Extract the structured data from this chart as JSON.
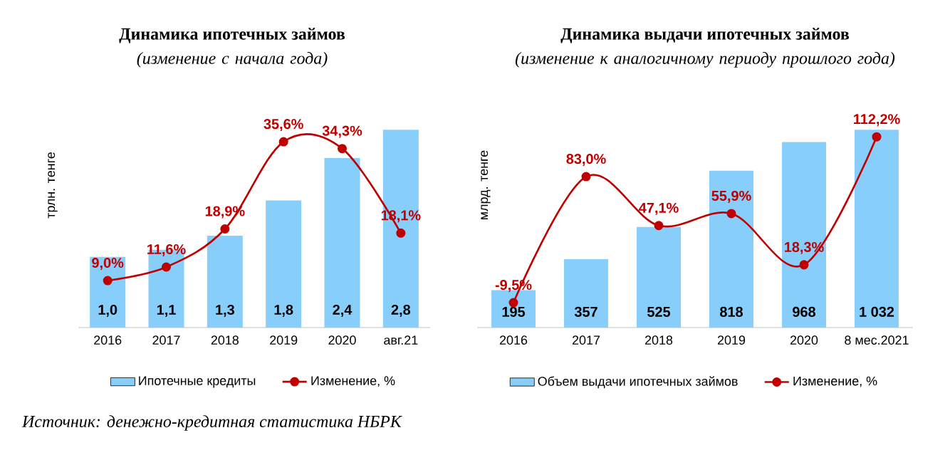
{
  "chart_data": [
    {
      "type": "bar",
      "title": "Динамика ипотечных займов",
      "subtitle": "(изменение с начала года)",
      "ylabel": "трлн. тенге",
      "categories": [
        "2016",
        "2017",
        "2018",
        "2019",
        "2020",
        "авг.21"
      ],
      "legend": "bottom",
      "series": [
        {
          "name": "Ипотечные кредиты",
          "color": "#87cefa",
          "values": [
            1.0,
            1.1,
            1.3,
            1.8,
            2.4,
            2.8
          ],
          "value_labels": [
            "1,0",
            "1,1",
            "1,3",
            "1,8",
            "2,4",
            "2,8"
          ]
        },
        {
          "name": "Изменение, %",
          "type": "line",
          "axis": "y2",
          "marker": "circle",
          "color": "#c00000",
          "values": [
            9.0,
            11.6,
            18.9,
            35.6,
            34.3,
            18.1
          ],
          "value_labels": [
            "9,0%",
            "11,6%",
            "18,9%",
            "35,6%",
            "34,3%",
            "18,1%"
          ]
        }
      ],
      "annotations": [
        "Источник: денежно-кредитная статистика НБРК"
      ]
    },
    {
      "type": "bar",
      "title": "Динамика выдачи ипотечных займов",
      "subtitle": "(изменение к аналогичному периоду прошлого года)",
      "ylabel": "млрд. тенге",
      "categories": [
        "2016",
        "2017",
        "2018",
        "2019",
        "2020",
        "8 мес.2021"
      ],
      "legend": "bottom",
      "series": [
        {
          "name": "Объем выдачи ипотечных займов",
          "color": "#87cefa",
          "values": [
            195,
            357,
            525,
            818,
            968,
            1032
          ],
          "value_labels": [
            "195",
            "357",
            "525",
            "818",
            "968",
            "1 032"
          ]
        },
        {
          "name": "Изменение, %",
          "type": "line",
          "axis": "y2",
          "marker": "circle",
          "color": "#c00000",
          "values": [
            -9.5,
            83.0,
            47.1,
            55.9,
            18.3,
            112.2
          ],
          "value_labels": [
            "-9,5%",
            "83,0%",
            "47,1%",
            "55,9%",
            "18,3%",
            "112,2%"
          ]
        }
      ]
    }
  ]
}
